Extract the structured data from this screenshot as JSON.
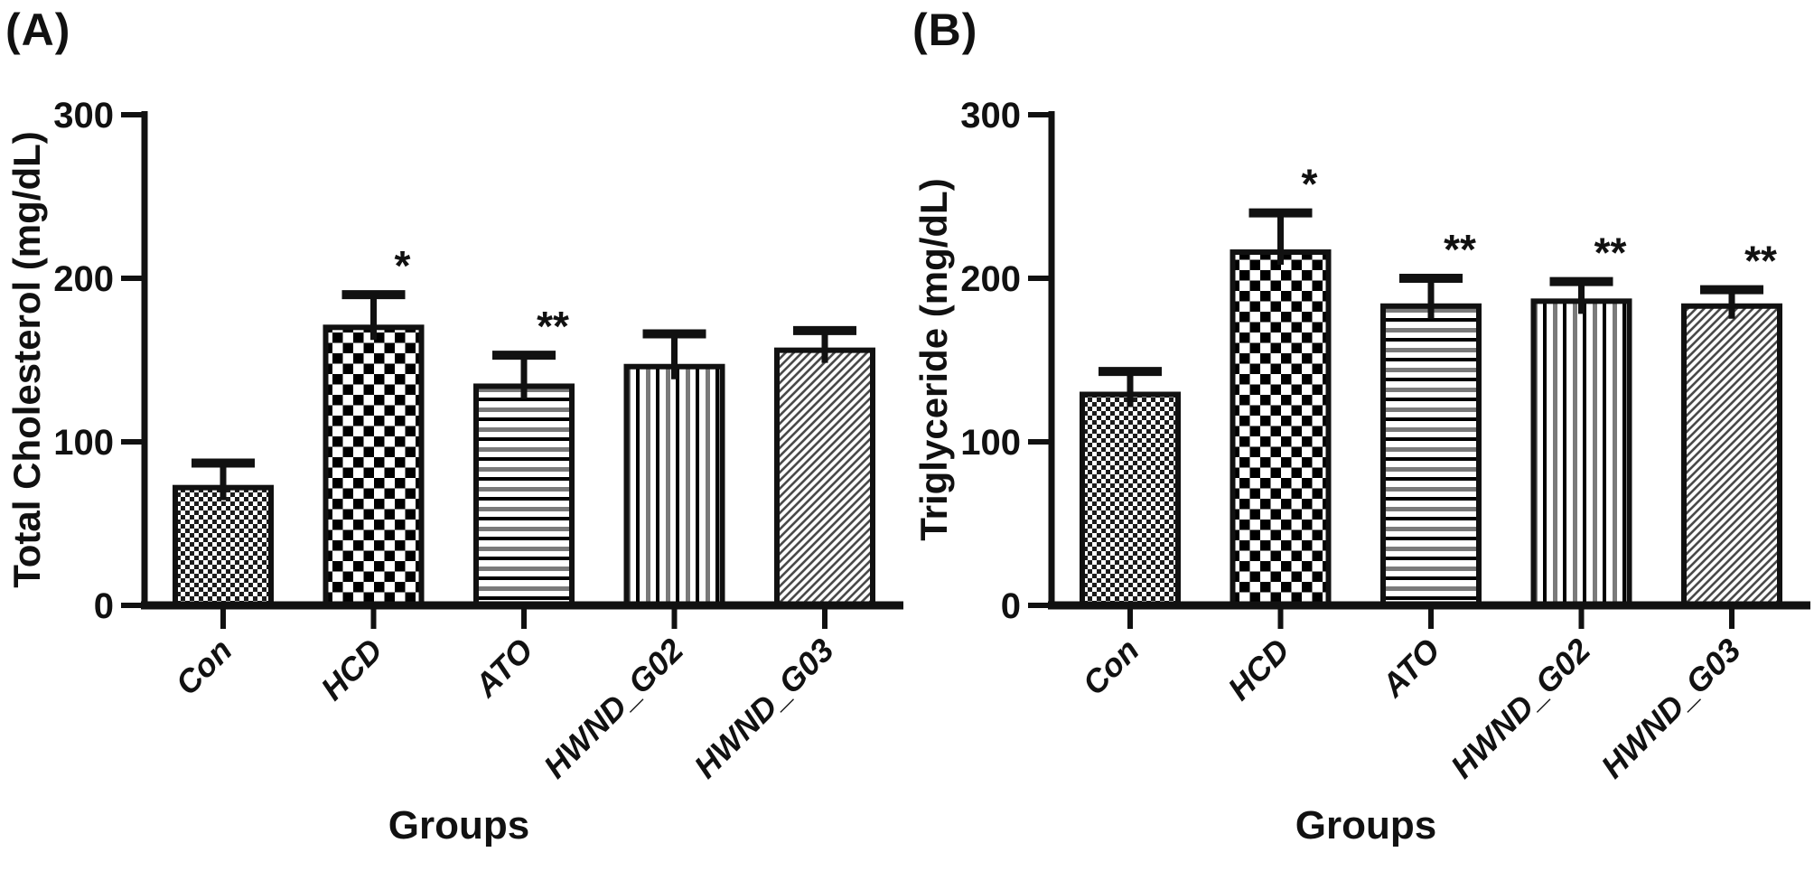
{
  "figure": {
    "background": "#ffffff",
    "colors": {
      "ink": "#111111",
      "stripe_gray": "#7a7a7a"
    }
  },
  "chart_data": [
    {
      "type": "bar",
      "title": "(A)",
      "categories": [
        "Con",
        "HCD",
        "ATO",
        "HWND_G02",
        "HWND_G03"
      ],
      "values": [
        72,
        170,
        134,
        146,
        156
      ],
      "errors_plus": [
        15,
        20,
        19,
        20,
        12
      ],
      "significance": [
        "",
        "*",
        "**",
        "",
        ""
      ],
      "bar_patterns": [
        "fine-checker",
        "checkerboard",
        "horizontal-stripes",
        "vertical-stripes",
        "diagonal-stripes"
      ],
      "ylabel": "Total Cholesterol (mg/dL)",
      "xlabel": "Groups",
      "ylim": [
        0,
        300
      ],
      "yticks": [
        0,
        100,
        200,
        300
      ],
      "grid": false,
      "legend": "none"
    },
    {
      "type": "bar",
      "title": "(B)",
      "categories": [
        "Con",
        "HCD",
        "ATO",
        "HWND_G02",
        "HWND_G03"
      ],
      "values": [
        129,
        216,
        183,
        186,
        183
      ],
      "errors_plus": [
        14,
        24,
        17,
        12,
        10
      ],
      "significance": [
        "",
        "*",
        "**",
        "**",
        "**"
      ],
      "bar_patterns": [
        "fine-checker",
        "checkerboard",
        "horizontal-stripes",
        "vertical-stripes",
        "diagonal-stripes"
      ],
      "ylabel": "Triglyceride (mg/dL)",
      "xlabel": "Groups",
      "ylim": [
        0,
        300
      ],
      "yticks": [
        0,
        100,
        200,
        300
      ],
      "grid": false,
      "legend": "none"
    }
  ]
}
